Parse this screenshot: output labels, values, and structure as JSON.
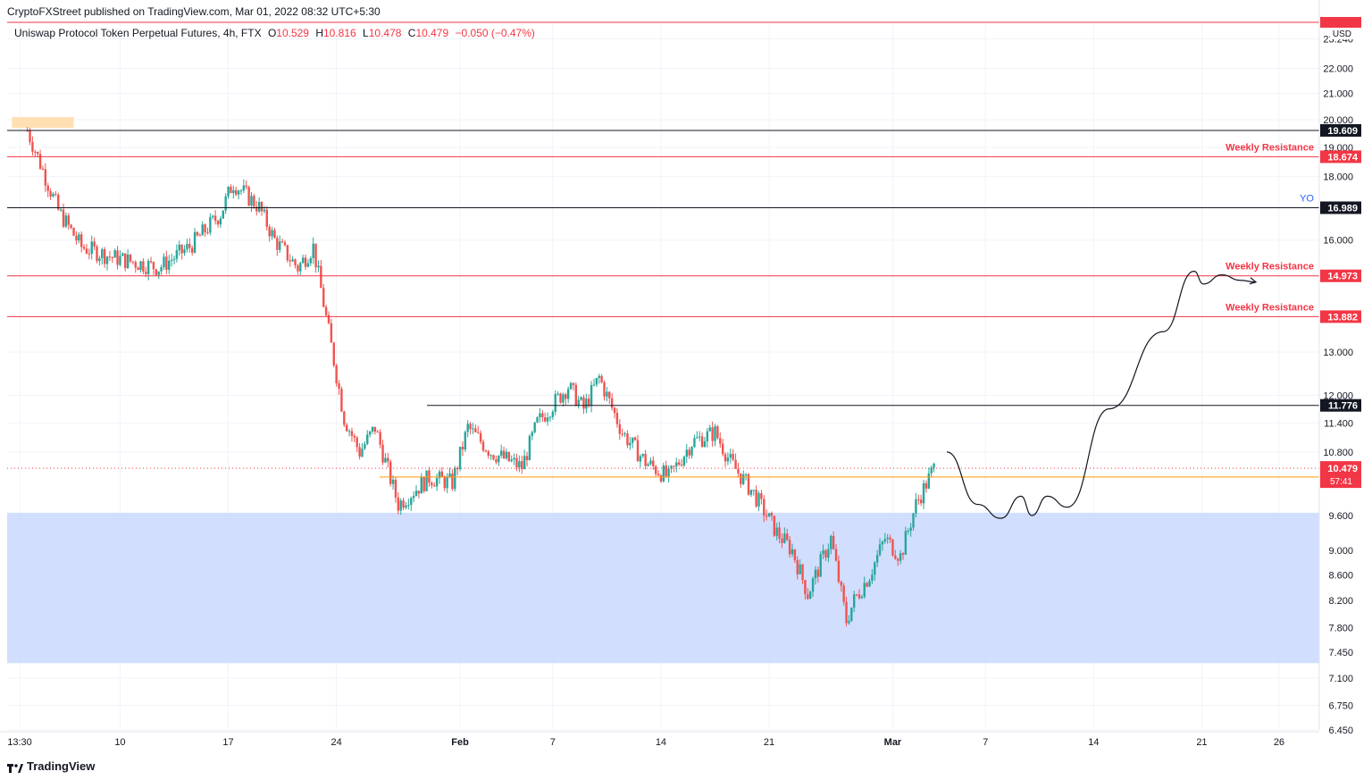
{
  "header": {
    "publisher": "CryptoFXStreet published on TradingView.com, Mar 01, 2022 08:32 UTC+5:30"
  },
  "symbol": {
    "name": "Uniswap Protocol Token Perpetual Futures, 4h, FTX",
    "o_label": "O",
    "o": "10.529",
    "h_label": "H",
    "h": "10.816",
    "l_label": "L",
    "l": "10.478",
    "c_label": "C",
    "c": "10.479",
    "change": "−0.050 (−0.47%)"
  },
  "footer": {
    "brand": "TradingView",
    "icon": "tradingview-logo-icon"
  },
  "colors": {
    "up": "#26a69a",
    "down": "#ef5350",
    "resistance": "#f23645",
    "level": "#131722",
    "orange": "#ff9800",
    "zone": "#c9d8fd",
    "yo": "#2962ff"
  },
  "chart_data": {
    "type": "candlestick",
    "title": "Uniswap Protocol Token Perpetual Futures, 4h, FTX",
    "xlabel": "",
    "ylabel": "USD",
    "y_unit_label": "USD",
    "ylim": [
      6.45,
      24.0
    ],
    "y_scale": "log",
    "x_tick_labels": [
      "13:30",
      "10",
      "17",
      "24",
      "Feb",
      "7",
      "14",
      "21",
      "Mar",
      "7",
      "14",
      "21",
      "26"
    ],
    "y_tick_labels": [
      "23.240",
      "22.000",
      "21.000",
      "20.000",
      "19.000",
      "18.000",
      "16.000",
      "13.000",
      "12.000",
      "11.400",
      "10.800",
      "9.600",
      "9.000",
      "8.600",
      "8.200",
      "7.800",
      "7.450",
      "7.100",
      "6.750",
      "6.450"
    ],
    "y_ticks": [
      23.24,
      22.0,
      21.0,
      20.0,
      19.0,
      18.0,
      16.0,
      13.0,
      12.0,
      11.4,
      10.8,
      9.6,
      9.0,
      8.6,
      8.2,
      7.8,
      7.45,
      7.1,
      6.75,
      6.45
    ],
    "x_ticks_days": [
      0,
      6.5,
      13.5,
      20.5,
      28.5,
      34.5,
      41.5,
      48.5,
      56.5,
      62.5,
      69.5,
      76.5,
      81.5
    ],
    "levels": [
      {
        "value": 19.609,
        "label": "19.609",
        "style": "black",
        "annotation": ""
      },
      {
        "value": 18.674,
        "label": "18.674",
        "style": "red",
        "annotation": "Weekly Resistance"
      },
      {
        "value": 16.989,
        "label": "16.989",
        "style": "black",
        "annotation": "YO"
      },
      {
        "value": 14.973,
        "label": "14.973",
        "style": "red",
        "annotation": "Weekly Resistance"
      },
      {
        "value": 13.882,
        "label": "13.882",
        "style": "red",
        "annotation": "Weekly Resistance"
      },
      {
        "value": 11.776,
        "label": "11.776",
        "style": "black",
        "annotation": ""
      },
      {
        "value": 10.31,
        "label": "10.310",
        "style": "orange",
        "annotation": ""
      }
    ],
    "last_price": {
      "value": 10.479,
      "label": "10.479",
      "countdown": "57:41"
    },
    "demand_zone": {
      "from": 7.3,
      "to": 9.65
    },
    "supply_zone": {
      "from": 19.7,
      "to": 20.1,
      "day_from": -0.5,
      "day_to": 3.5
    },
    "key_points": [
      {
        "day": 0.5,
        "value": 19.6
      },
      {
        "day": 1.0,
        "value": 18.9
      },
      {
        "day": 2.5,
        "value": 16.9
      },
      {
        "day": 4.0,
        "value": 15.8
      },
      {
        "day": 6.0,
        "value": 15.5
      },
      {
        "day": 9.0,
        "value": 15.2
      },
      {
        "day": 11.0,
        "value": 15.8
      },
      {
        "day": 13.0,
        "value": 16.8
      },
      {
        "day": 13.8,
        "value": 17.8
      },
      {
        "day": 15.5,
        "value": 17.0
      },
      {
        "day": 16.5,
        "value": 16.0
      },
      {
        "day": 18.0,
        "value": 15.2
      },
      {
        "day": 19.0,
        "value": 15.8
      },
      {
        "day": 20.0,
        "value": 13.5
      },
      {
        "day": 21.0,
        "value": 11.5
      },
      {
        "day": 22.0,
        "value": 10.8
      },
      {
        "day": 23.0,
        "value": 11.3
      },
      {
        "day": 24.5,
        "value": 9.8
      },
      {
        "day": 26.5,
        "value": 10.3
      },
      {
        "day": 28.0,
        "value": 10.2
      },
      {
        "day": 29.0,
        "value": 11.3
      },
      {
        "day": 30.5,
        "value": 10.8
      },
      {
        "day": 32.5,
        "value": 10.5
      },
      {
        "day": 33.5,
        "value": 11.4
      },
      {
        "day": 35.5,
        "value": 12.2
      },
      {
        "day": 36.5,
        "value": 11.7
      },
      {
        "day": 37.5,
        "value": 12.4
      },
      {
        "day": 39.0,
        "value": 11.2
      },
      {
        "day": 40.5,
        "value": 10.6
      },
      {
        "day": 42.0,
        "value": 10.3
      },
      {
        "day": 43.5,
        "value": 11.0
      },
      {
        "day": 45.0,
        "value": 11.2
      },
      {
        "day": 46.0,
        "value": 10.6
      },
      {
        "day": 47.5,
        "value": 10.0
      },
      {
        "day": 49.0,
        "value": 9.3
      },
      {
        "day": 50.0,
        "value": 9.0
      },
      {
        "day": 51.0,
        "value": 8.3
      },
      {
        "day": 52.5,
        "value": 9.2
      },
      {
        "day": 53.5,
        "value": 7.9
      },
      {
        "day": 54.0,
        "value": 8.2
      },
      {
        "day": 55.0,
        "value": 8.6
      },
      {
        "day": 56.0,
        "value": 9.2
      },
      {
        "day": 57.0,
        "value": 8.9
      },
      {
        "day": 58.0,
        "value": 9.8
      },
      {
        "day": 59.2,
        "value": 10.5
      }
    ],
    "projection": [
      {
        "day": 60.0,
        "value": 10.8
      },
      {
        "day": 62.0,
        "value": 9.8
      },
      {
        "day": 63.5,
        "value": 9.55
      },
      {
        "day": 64.8,
        "value": 9.95
      },
      {
        "day": 65.5,
        "value": 9.6
      },
      {
        "day": 66.5,
        "value": 9.95
      },
      {
        "day": 67.8,
        "value": 9.75
      },
      {
        "day": 70.5,
        "value": 11.7
      },
      {
        "day": 74.0,
        "value": 13.5
      },
      {
        "day": 76.0,
        "value": 15.1
      },
      {
        "day": 76.6,
        "value": 14.75
      },
      {
        "day": 77.8,
        "value": 15.0
      },
      {
        "day": 79.0,
        "value": 14.85
      },
      {
        "day": 80.0,
        "value": 14.8
      }
    ]
  }
}
